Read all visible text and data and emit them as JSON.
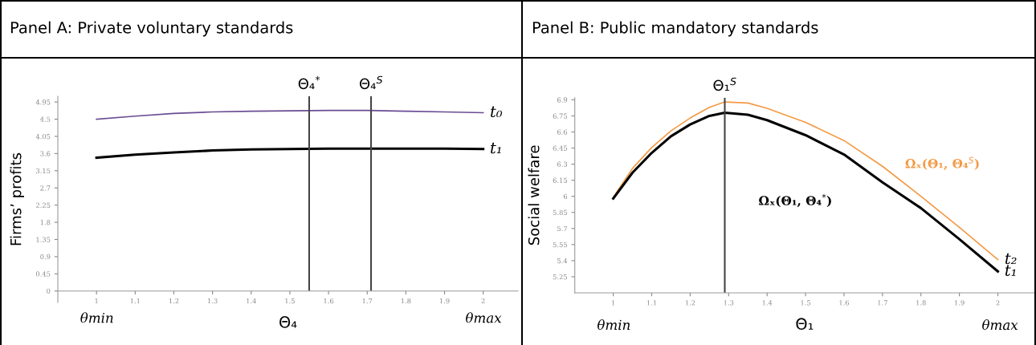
{
  "chart_data": [
    {
      "type": "line",
      "title": "Panel A: Private voluntary standards",
      "xlabel": "Θ₄",
      "ylabel": "Firms’ profits",
      "x": [
        1,
        1.1,
        1.2,
        1.3,
        1.4,
        1.5,
        1.6,
        1.7,
        1.8,
        1.9,
        2
      ],
      "series": [
        {
          "name": "t₀",
          "color": "#6a4c93",
          "values": [
            4.5,
            4.58,
            4.65,
            4.69,
            4.71,
            4.72,
            4.73,
            4.73,
            4.71,
            4.69,
            4.67
          ]
        },
        {
          "name": "t₁",
          "color": "#000000",
          "values": [
            3.49,
            3.57,
            3.63,
            3.68,
            3.71,
            3.72,
            3.73,
            3.73,
            3.73,
            3.73,
            3.72
          ]
        }
      ],
      "xlim": [
        0.9,
        2.09
      ],
      "ylim": [
        -0.3,
        5.1
      ],
      "xticks": [
        1,
        1.1,
        1.2,
        1.3,
        1.4,
        1.5,
        1.6,
        1.7,
        1.8,
        1.9,
        2
      ],
      "yticks": [
        0,
        0.45,
        0.9,
        1.35,
        1.8,
        2.25,
        2.7,
        3.15,
        3.6,
        4.05,
        4.5,
        4.95
      ],
      "ref_lines": [
        {
          "axis": "x",
          "value": 1.55,
          "label": "Θ₄$^{*}$",
          "color": "#444444"
        },
        {
          "axis": "x",
          "value": 1.71,
          "label": "Θ₄$^{S}$",
          "color": "#444444"
        }
      ],
      "annotations": [
        "θmin",
        "θmax"
      ],
      "grid": false,
      "legend": false,
      "marker": "none",
      "line_style": "solid"
    },
    {
      "type": "line",
      "title": "Panel B: Public mandatory standards",
      "xlabel": "Θ₁",
      "ylabel": "Social welfare",
      "x": [
        1,
        1.05,
        1.1,
        1.15,
        1.2,
        1.25,
        1.29,
        1.35,
        1.4,
        1.5,
        1.6,
        1.7,
        1.8,
        1.9,
        2
      ],
      "series": [
        {
          "name": "t₂",
          "color": "#f39a45",
          "values": [
            5.99,
            6.26,
            6.455,
            6.61,
            6.73,
            6.83,
            6.88,
            6.87,
            6.82,
            6.69,
            6.52,
            6.28,
            6.0,
            5.71,
            5.41
          ]
        },
        {
          "name": "t₁",
          "color": "#000000",
          "values": [
            5.98,
            6.22,
            6.405,
            6.56,
            6.67,
            6.75,
            6.78,
            6.76,
            6.71,
            6.57,
            6.39,
            6.13,
            5.89,
            5.6,
            5.3
          ]
        }
      ],
      "xlim": [
        0.9,
        2.095
      ],
      "ylim": [
        5.1,
        6.92
      ],
      "xticks": [
        1,
        1.1,
        1.2,
        1.3,
        1.4,
        1.5,
        1.6,
        1.7,
        1.8,
        1.9,
        2
      ],
      "yticks": [
        5.25,
        5.4,
        5.55,
        5.7,
        5.85,
        6,
        6.15,
        6.3,
        6.45,
        6.6,
        6.75,
        6.9
      ],
      "ref_lines": [
        {
          "axis": "x",
          "value": 1.29,
          "label": "Θ₁$^{S}$",
          "color": "#444444"
        }
      ],
      "annotations": [
        "θmin",
        "θmax",
        "Ωₓ(Θ₁, Θ₄$^{*}$)",
        "Ωₓ(Θ₁, Θ₄$^{S}$)"
      ],
      "grid": false,
      "legend": false,
      "marker": "none",
      "line_style": "solid"
    }
  ]
}
